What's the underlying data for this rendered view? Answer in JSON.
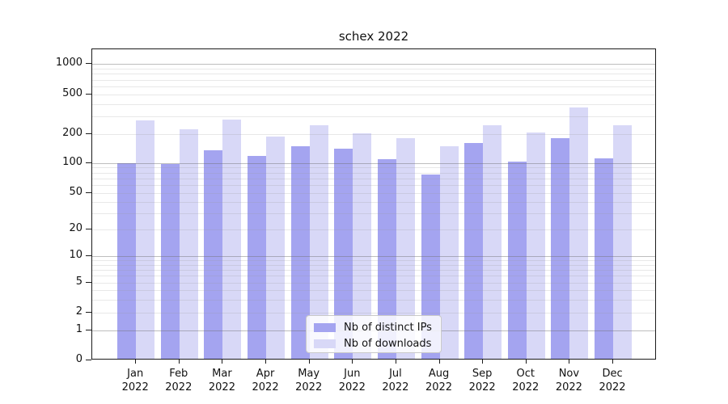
{
  "chart_data": {
    "type": "bar",
    "title": "schex 2022",
    "categories": [
      "Jan",
      "Feb",
      "Mar",
      "Apr",
      "May",
      "Jun",
      "Jul",
      "Aug",
      "Sep",
      "Oct",
      "Nov",
      "Dec"
    ],
    "year_label": "2022",
    "series": [
      {
        "name": "Nb of distinct IPs",
        "color": "#a4a4f0",
        "values": [
          97,
          95,
          130,
          114,
          143,
          135,
          107,
          74,
          157,
          100,
          176,
          109
        ]
      },
      {
        "name": "Nb of downloads",
        "color": "#d8d8f7",
        "values": [
          268,
          214,
          270,
          182,
          235,
          197,
          176,
          143,
          235,
          200,
          360,
          235
        ]
      }
    ],
    "y_ticks": [
      0,
      1,
      2,
      5,
      10,
      20,
      50,
      100,
      200,
      500,
      1000
    ],
    "ylim": [
      0,
      1400
    ],
    "scale": "log-like (0,1,2,5,10,20,50,100,200,500,1000)",
    "grid": "horizontal",
    "xlabel": "",
    "ylabel": "",
    "legend_position": "lower center"
  }
}
